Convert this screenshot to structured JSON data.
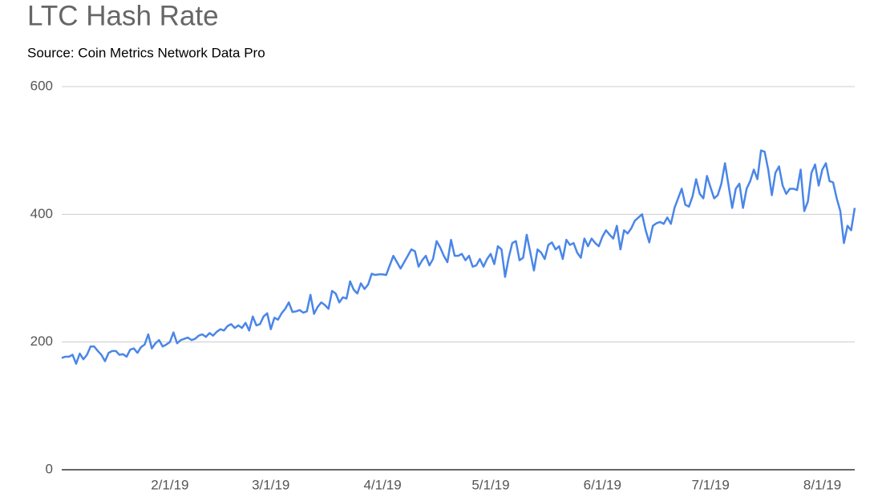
{
  "chart_data": {
    "type": "line",
    "title": "LTC Hash Rate",
    "subtitle": "Source: Coin Metrics Network Data Pro",
    "color": "#4a86e8",
    "grid": true,
    "x": [
      "1/2/19",
      "1/3/19",
      "1/4/19",
      "1/5/19",
      "1/6/19",
      "1/7/19",
      "1/8/19",
      "1/9/19",
      "1/10/19",
      "1/11/19",
      "1/12/19",
      "1/13/19",
      "1/14/19",
      "1/15/19",
      "1/16/19",
      "1/17/19",
      "1/18/19",
      "1/19/19",
      "1/20/19",
      "1/21/19",
      "1/22/19",
      "1/23/19",
      "1/24/19",
      "1/25/19",
      "1/26/19",
      "1/27/19",
      "1/28/19",
      "1/29/19",
      "1/30/19",
      "1/31/19",
      "2/1/19",
      "2/2/19",
      "2/3/19",
      "2/4/19",
      "2/5/19",
      "2/6/19",
      "2/7/19",
      "2/8/19",
      "2/9/19",
      "2/10/19",
      "2/11/19",
      "2/12/19",
      "2/13/19",
      "2/14/19",
      "2/15/19",
      "2/16/19",
      "2/17/19",
      "2/18/19",
      "2/19/19",
      "2/20/19",
      "2/21/19",
      "2/22/19",
      "2/23/19",
      "2/24/19",
      "2/25/19",
      "2/26/19",
      "2/27/19",
      "2/28/19",
      "3/1/19",
      "3/2/19",
      "3/3/19",
      "3/4/19",
      "3/5/19",
      "3/6/19",
      "3/7/19",
      "3/8/19",
      "3/9/19",
      "3/10/19",
      "3/11/19",
      "3/12/19",
      "3/13/19",
      "3/14/19",
      "3/15/19",
      "3/16/19",
      "3/17/19",
      "3/18/19",
      "3/19/19",
      "3/20/19",
      "3/21/19",
      "3/22/19",
      "3/23/19",
      "3/24/19",
      "3/25/19",
      "3/26/19",
      "3/27/19",
      "3/28/19",
      "3/29/19",
      "3/30/19",
      "3/31/19",
      "4/1/19",
      "4/2/19",
      "4/3/19",
      "4/4/19",
      "4/5/19",
      "4/6/19",
      "4/7/19",
      "4/8/19",
      "4/9/19",
      "4/10/19",
      "4/11/19",
      "4/12/19",
      "4/13/19",
      "4/14/19",
      "4/15/19",
      "4/16/19",
      "4/17/19",
      "4/18/19",
      "4/19/19",
      "4/20/19",
      "4/21/19",
      "4/22/19",
      "4/23/19",
      "4/24/19",
      "4/25/19",
      "4/26/19",
      "4/27/19",
      "4/28/19",
      "4/29/19",
      "4/30/19",
      "5/1/19",
      "5/2/19",
      "5/3/19",
      "5/4/19",
      "5/5/19",
      "5/6/19",
      "5/7/19",
      "5/8/19",
      "5/9/19",
      "5/10/19",
      "5/11/19",
      "5/12/19",
      "5/13/19",
      "5/14/19",
      "5/15/19",
      "5/16/19",
      "5/17/19",
      "5/18/19",
      "5/19/19",
      "5/20/19",
      "5/21/19",
      "5/22/19",
      "5/23/19",
      "5/24/19",
      "5/25/19",
      "5/26/19",
      "5/27/19",
      "5/28/19",
      "5/29/19",
      "5/30/19",
      "5/31/19",
      "6/1/19",
      "6/2/19",
      "6/3/19",
      "6/4/19",
      "6/5/19",
      "6/6/19",
      "6/7/19",
      "6/8/19",
      "6/9/19",
      "6/10/19",
      "6/11/19",
      "6/12/19",
      "6/13/19",
      "6/14/19",
      "6/15/19",
      "6/16/19",
      "6/17/19",
      "6/18/19",
      "6/19/19",
      "6/20/19",
      "6/21/19",
      "6/22/19",
      "6/23/19",
      "6/24/19",
      "6/25/19",
      "6/26/19",
      "6/27/19",
      "6/28/19",
      "6/29/19",
      "6/30/19",
      "7/1/19",
      "7/2/19",
      "7/3/19",
      "7/4/19",
      "7/5/19",
      "7/6/19",
      "7/7/19",
      "7/8/19",
      "7/9/19",
      "7/10/19",
      "7/11/19",
      "7/12/19",
      "7/13/19",
      "7/14/19",
      "7/15/19",
      "7/16/19",
      "7/17/19",
      "7/18/19",
      "7/19/19",
      "7/20/19",
      "7/21/19",
      "7/22/19",
      "7/23/19",
      "7/24/19",
      "7/25/19",
      "7/26/19",
      "7/27/19",
      "7/28/19",
      "7/29/19",
      "7/30/19",
      "7/31/19",
      "8/1/19",
      "8/2/19",
      "8/3/19",
      "8/4/19",
      "8/5/19",
      "8/6/19",
      "8/7/19",
      "8/8/19",
      "8/9/19",
      "8/10/19"
    ],
    "values": [
      175,
      177,
      177,
      180,
      166,
      182,
      173,
      180,
      193,
      193,
      186,
      180,
      170,
      183,
      186,
      186,
      180,
      181,
      177,
      188,
      190,
      183,
      192,
      196,
      212,
      190,
      198,
      203,
      193,
      196,
      200,
      215,
      198,
      203,
      205,
      207,
      203,
      205,
      210,
      212,
      208,
      214,
      210,
      216,
      220,
      218,
      225,
      228,
      222,
      226,
      222,
      230,
      218,
      240,
      226,
      228,
      240,
      245,
      220,
      238,
      235,
      245,
      252,
      262,
      247,
      248,
      250,
      246,
      248,
      274,
      244,
      255,
      262,
      258,
      252,
      280,
      276,
      262,
      270,
      268,
      295,
      282,
      276,
      292,
      283,
      290,
      307,
      305,
      306,
      306,
      305,
      320,
      335,
      325,
      315,
      325,
      335,
      345,
      342,
      318,
      328,
      335,
      320,
      330,
      358,
      348,
      335,
      325,
      360,
      335,
      335,
      338,
      328,
      335,
      318,
      320,
      330,
      318,
      330,
      338,
      322,
      350,
      345,
      302,
      332,
      355,
      358,
      328,
      332,
      368,
      340,
      312,
      345,
      340,
      330,
      352,
      356,
      345,
      350,
      330,
      360,
      352,
      355,
      340,
      332,
      362,
      350,
      362,
      355,
      350,
      365,
      375,
      368,
      362,
      382,
      345,
      375,
      370,
      378,
      390,
      395,
      400,
      375,
      356,
      382,
      386,
      388,
      385,
      395,
      385,
      410,
      425,
      440,
      415,
      412,
      428,
      455,
      432,
      425,
      460,
      442,
      425,
      430,
      448,
      480,
      445,
      410,
      440,
      448,
      410,
      440,
      452,
      470,
      455,
      500,
      498,
      470,
      430,
      465,
      475,
      445,
      432,
      440,
      440,
      438,
      470,
      405,
      420,
      465,
      478,
      445,
      470,
      480,
      452,
      450,
      425,
      405,
      355,
      382,
      375,
      410
    ],
    "xlim": [
      "1/2/19",
      "8/10/19"
    ],
    "xticks": [
      "2/1/19",
      "3/1/19",
      "4/1/19",
      "5/1/19",
      "6/1/19",
      "7/1/19",
      "8/1/19"
    ],
    "ylim": [
      0,
      600
    ],
    "yticks": [
      0,
      200,
      400,
      600
    ]
  }
}
